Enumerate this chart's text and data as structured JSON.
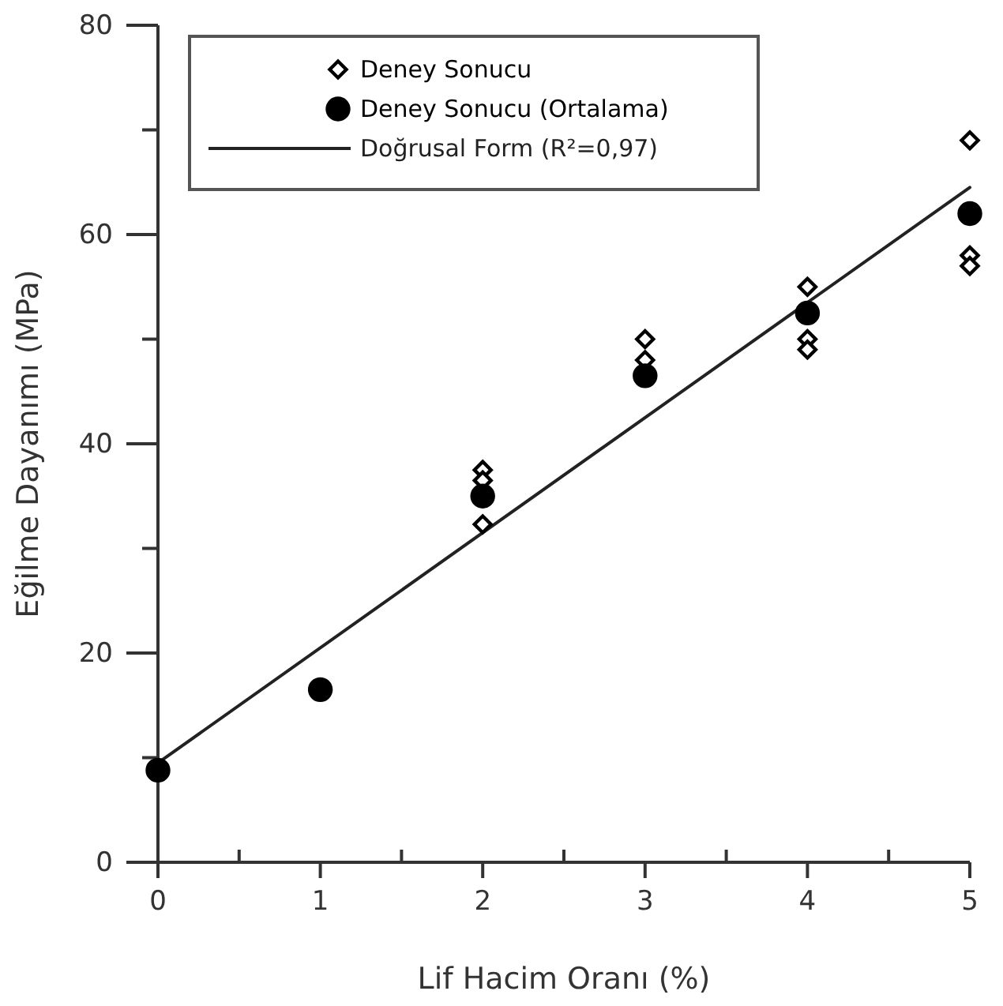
{
  "chart_data": {
    "type": "scatter",
    "xlabel": "Lif Hacim Oranı (%)",
    "ylabel": "Eğilme Dayanımı (MPa)",
    "xlim": [
      0,
      5
    ],
    "ylim": [
      0,
      80
    ],
    "xticks": [
      0,
      {
        "value": 0.5,
        "label": null
      },
      1,
      {
        "value": 1.5,
        "label": null
      },
      2,
      {
        "value": 2.5,
        "label": null
      },
      3,
      {
        "value": 3.5,
        "label": null
      },
      4,
      {
        "value": 4.5,
        "label": null
      },
      5
    ],
    "yticks": [
      0,
      {
        "value": 10,
        "label": null
      },
      20,
      {
        "value": 30,
        "label": null
      },
      40,
      {
        "value": 50,
        "label": null
      },
      60,
      {
        "value": 70,
        "label": null
      },
      80
    ],
    "legend": "top left",
    "grid": false,
    "series": [
      {
        "name": "Deney Sonucu",
        "marker": "diamond",
        "color": "#000000",
        "x": [
          2,
          2,
          2,
          3,
          3,
          4,
          4,
          4,
          5,
          5,
          5
        ],
        "values": [
          37.5,
          36.5,
          32.3,
          50,
          48,
          55,
          50,
          49,
          69,
          58,
          57
        ]
      },
      {
        "name": "Deney Sonucu (Ortalama)",
        "marker": "circle",
        "color": "#000000",
        "x": [
          0,
          1,
          2,
          3,
          4,
          5
        ],
        "values": [
          8.8,
          16.5,
          35,
          46.5,
          52.5,
          62
        ]
      },
      {
        "name": "Doğrusal Form (R²=0,97)",
        "type": "line",
        "marker": "none",
        "line_style": "solid",
        "color": "#222222",
        "x": [
          0,
          5
        ],
        "values": [
          9.5,
          64.5
        ]
      }
    ]
  }
}
